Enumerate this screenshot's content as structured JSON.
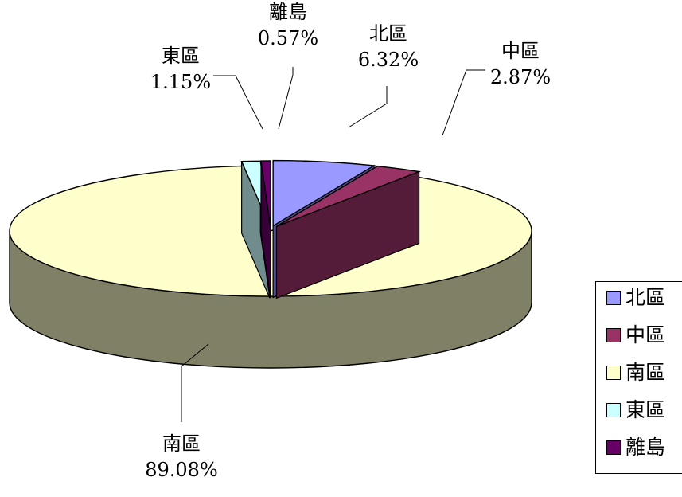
{
  "chart_data": {
    "type": "pie",
    "title": "",
    "categories": [
      "北區",
      "中區",
      "南區",
      "東區",
      "離島"
    ],
    "values": [
      6.32,
      2.87,
      89.08,
      1.15,
      0.57
    ],
    "value_labels": [
      "6.32%",
      "2.87%",
      "89.08%",
      "1.15%",
      "0.57%"
    ],
    "colors": [
      "#9999FF",
      "#993366",
      "#FFFFCC",
      "#CCFFFF",
      "#660066"
    ],
    "exploded": true,
    "three_d": true,
    "legend": {
      "position": "right",
      "items": [
        "北區",
        "中區",
        "南區",
        "東區",
        "離島"
      ]
    }
  }
}
